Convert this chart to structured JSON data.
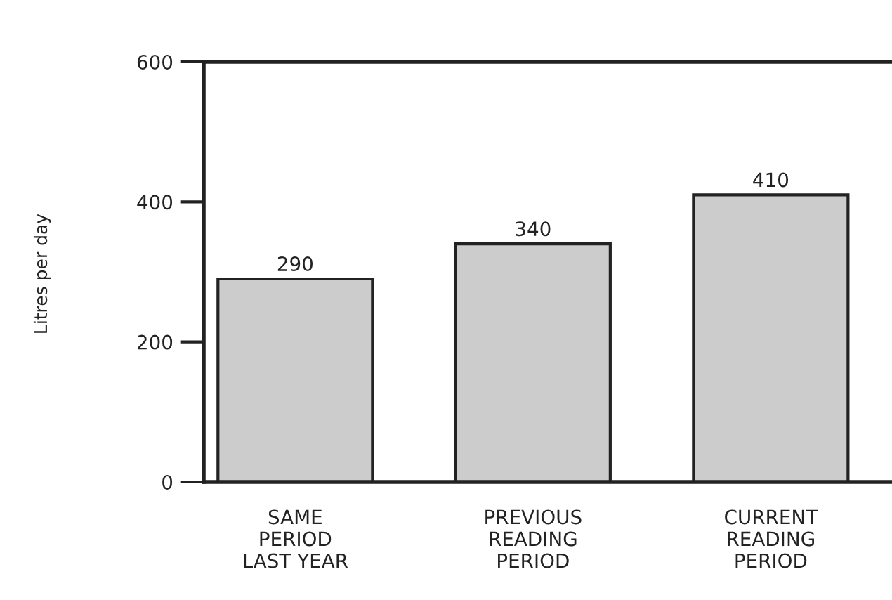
{
  "chart_data": {
    "type": "bar",
    "ylabel": "Litres per day",
    "categories": [
      "SAME\nPERIOD\nLAST YEAR",
      "PREVIOUS\nREADING\nPERIOD",
      "CURRENT\nREADING\nPERIOD"
    ],
    "values": [
      290,
      340,
      410
    ],
    "color": "#cccccc",
    "ylim": [
      0,
      600
    ],
    "yticks": [
      0,
      200,
      400,
      600
    ],
    "grid": false,
    "data_labels": true
  }
}
